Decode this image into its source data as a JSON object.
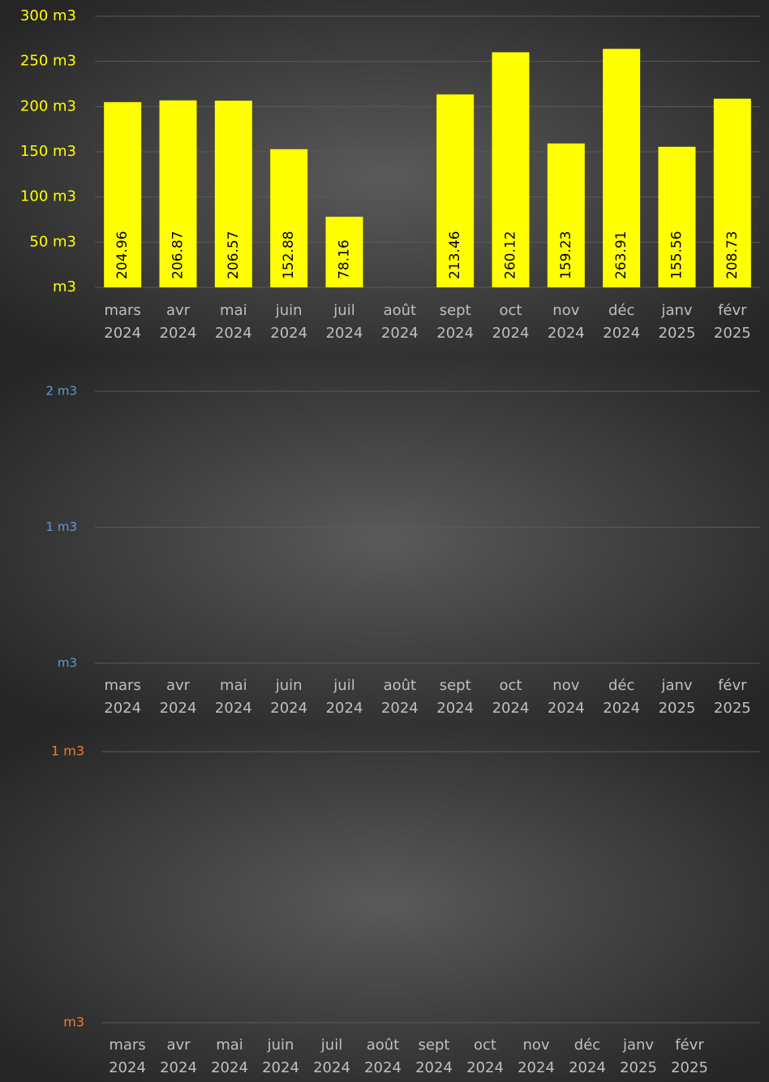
{
  "chart_data": [
    {
      "type": "bar",
      "categories": [
        "mars 2024",
        "avr 2024",
        "mai 2024",
        "juin 2024",
        "juil 2024",
        "août 2024",
        "sept 2024",
        "oct 2024",
        "nov 2024",
        "déc 2024",
        "janv 2025",
        "févr 2025"
      ],
      "values": [
        204.96,
        206.87,
        206.57,
        152.88,
        78.16,
        null,
        213.46,
        260.12,
        159.23,
        263.91,
        155.56,
        208.73
      ],
      "color": "#ffff00",
      "tick_color": "#ffff00",
      "grid": true,
      "ylim": [
        0,
        300
      ],
      "yticks": [
        {
          "value": 0,
          "label": "m3"
        },
        {
          "value": 50,
          "label": "50 m3"
        },
        {
          "value": 100,
          "label": "100 m3"
        },
        {
          "value": 150,
          "label": "150 m3"
        },
        {
          "value": 200,
          "label": "200 m3"
        },
        {
          "value": 250,
          "label": "250 m3"
        },
        {
          "value": 300,
          "label": "300 m3"
        }
      ]
    },
    {
      "type": "bar",
      "categories": [
        "mars 2024",
        "avr 2024",
        "mai 2024",
        "juin 2024",
        "juil 2024",
        "août 2024",
        "sept 2024",
        "oct 2024",
        "nov 2024",
        "déc 2024",
        "janv 2025",
        "févr 2025"
      ],
      "tick_color": "#5b9bd5",
      "grid": true,
      "ylim": [
        0,
        2
      ],
      "yticks": [
        {
          "value": 0,
          "label": "m3"
        },
        {
          "value": 1,
          "label": "1 m3"
        },
        {
          "value": 2,
          "label": "2 m3"
        }
      ]
    },
    {
      "type": "bar",
      "categories": [
        "mars 2024",
        "avr 2024",
        "mai 2024",
        "juin 2024",
        "juil 2024",
        "août 2024",
        "sept 2024",
        "oct 2024",
        "nov 2024",
        "déc 2024",
        "janv 2025",
        "févr 2025"
      ],
      "tick_color": "#ed7d31",
      "grid": true,
      "ylim": [
        0,
        1
      ],
      "yticks": [
        {
          "value": 0,
          "label": "m3"
        },
        {
          "value": 1,
          "label": "1 m3"
        }
      ]
    }
  ]
}
